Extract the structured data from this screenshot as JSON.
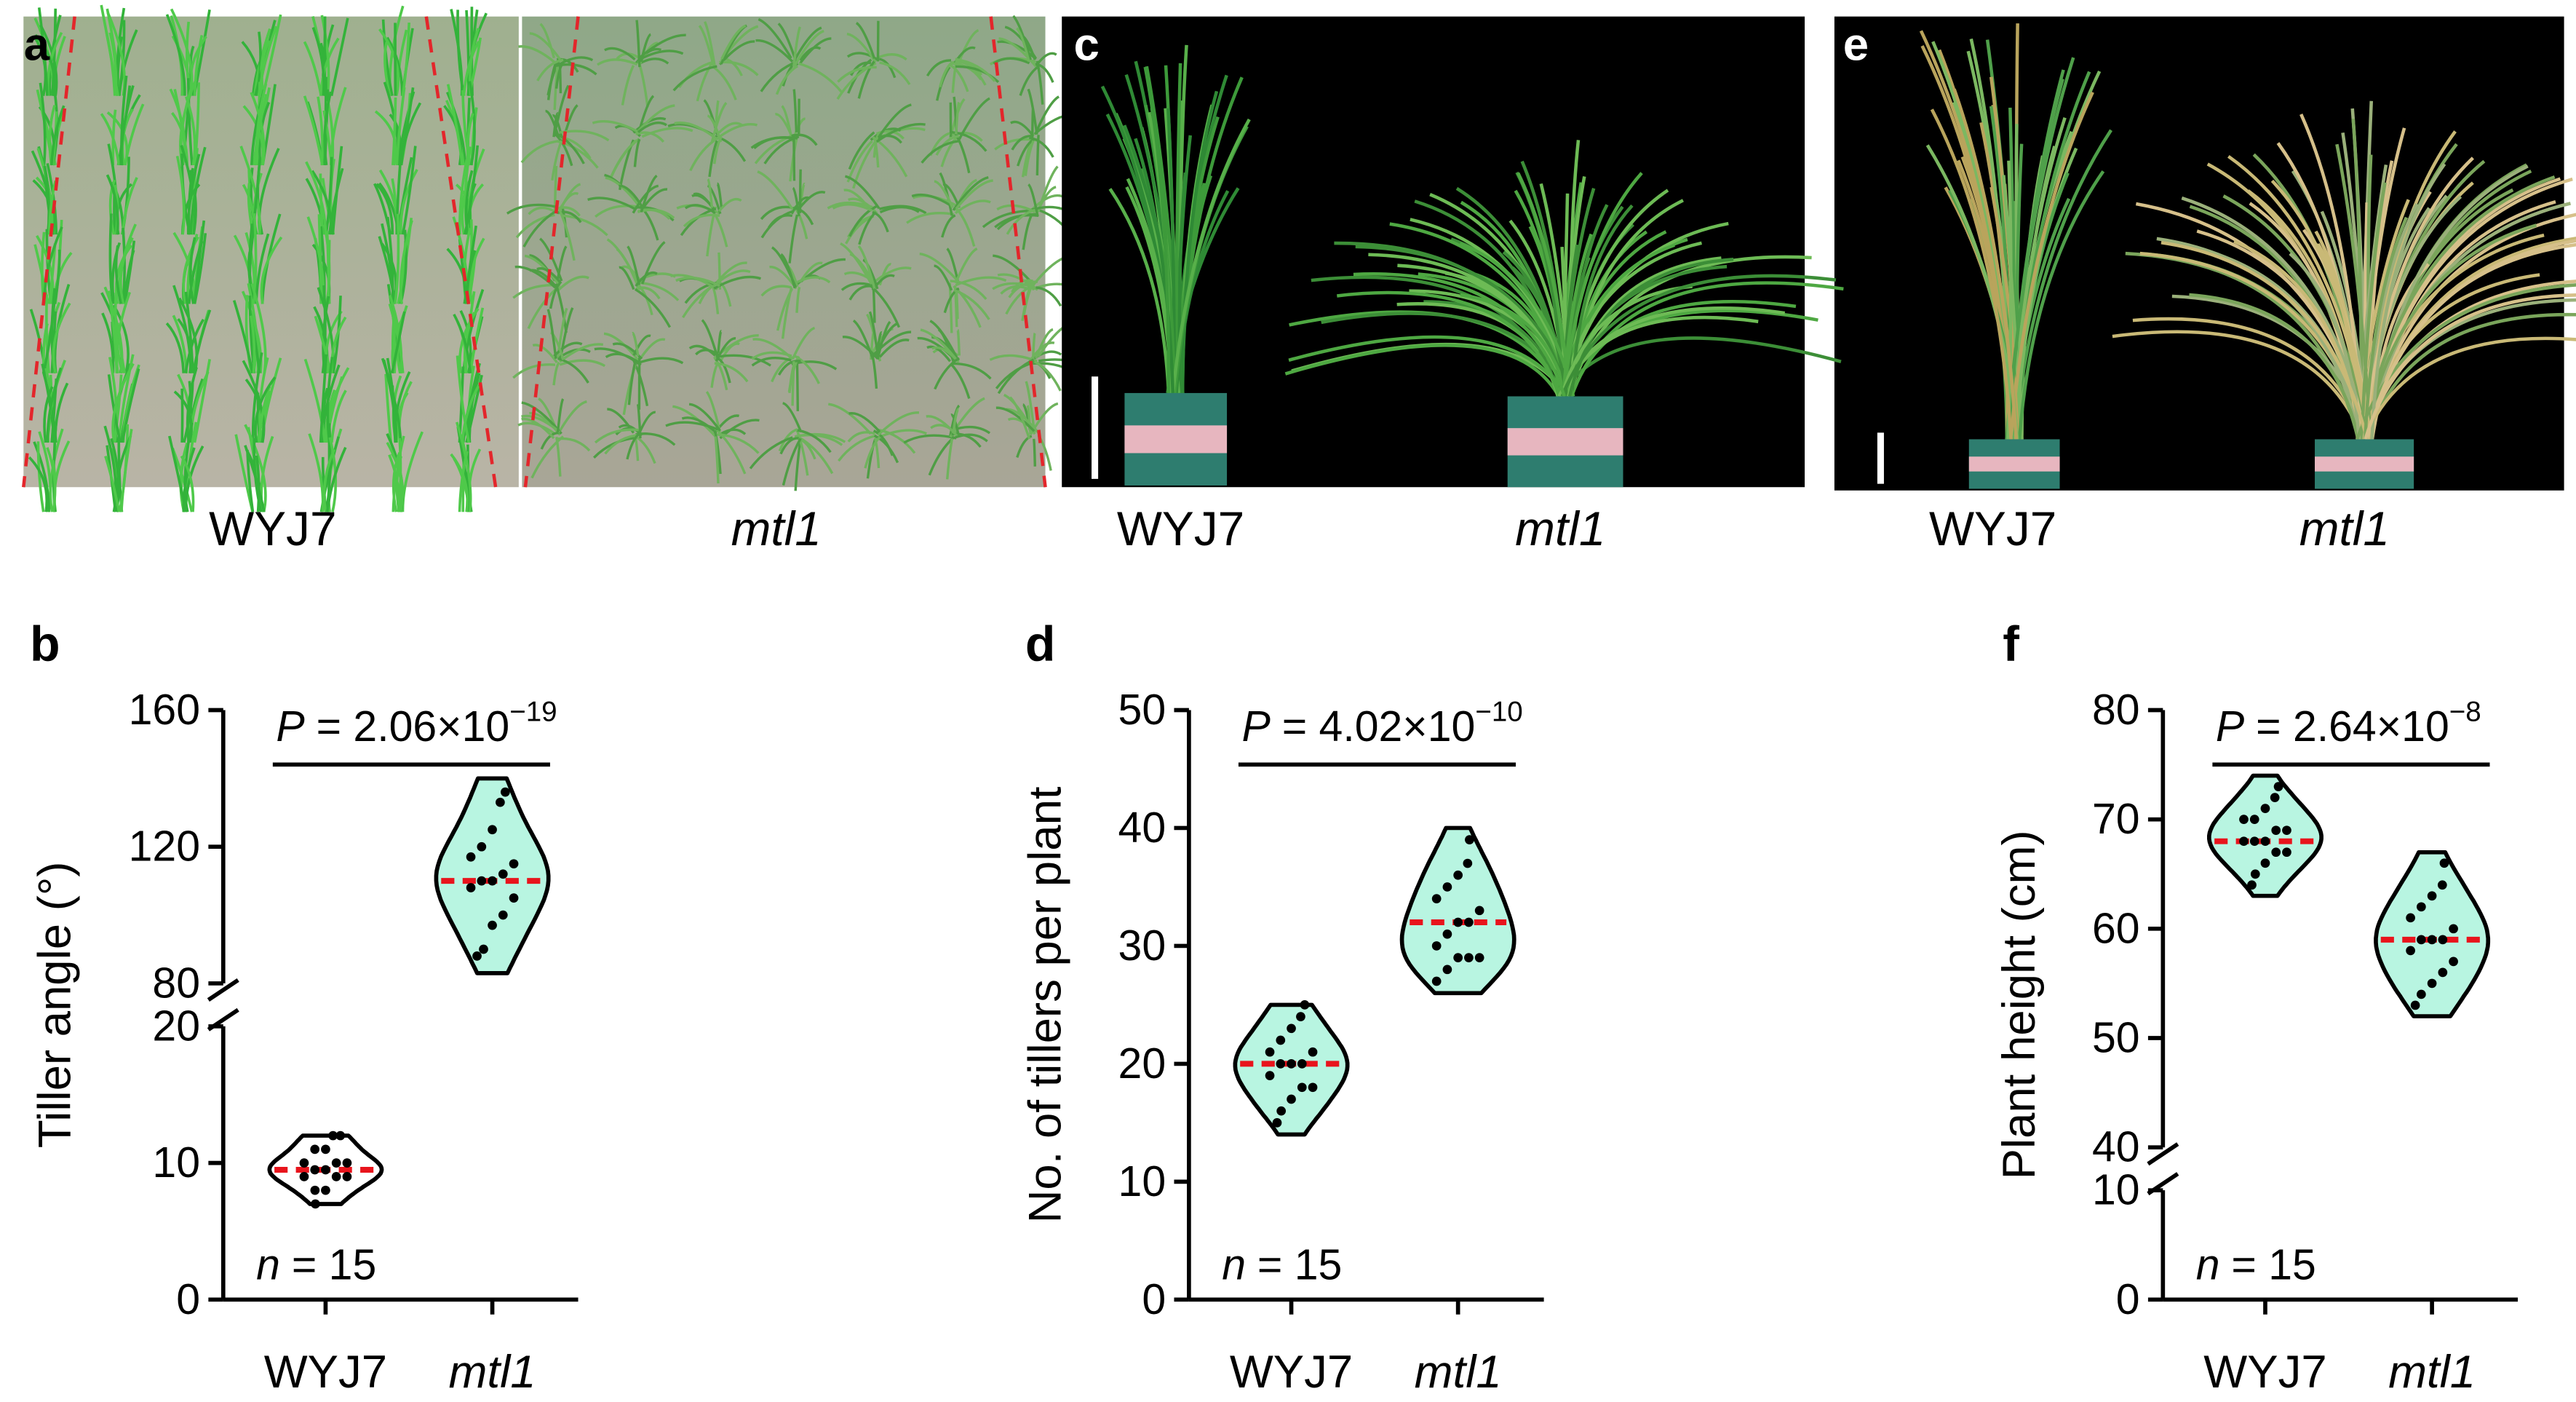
{
  "photos": [
    {
      "letter": "a",
      "labels": [
        "WYJ7",
        "mtl1"
      ]
    },
    {
      "letter": "c",
      "labels": [
        "WYJ7",
        "mtl1"
      ]
    },
    {
      "letter": "e",
      "labels": [
        "WYJ7",
        "mtl1"
      ]
    }
  ],
  "chart_data": [
    {
      "type": "violin",
      "panel": "b",
      "ylabel": "Tiller angle (°)",
      "categories": [
        "WYJ7",
        "mtl1"
      ],
      "ylim": [
        0,
        160
      ],
      "ybreak": [
        20,
        80
      ],
      "yticks": [
        0,
        10,
        20,
        80,
        120,
        160
      ],
      "points": [
        [
          7,
          8,
          8,
          9,
          9,
          9,
          9.5,
          9.5,
          10,
          10,
          10,
          11,
          11,
          12,
          12
        ],
        [
          88,
          90,
          97,
          100,
          105,
          108,
          110,
          110,
          112,
          115,
          117,
          120,
          125,
          133,
          136
        ]
      ],
      "medians": [
        9.5,
        110
      ],
      "mins": [
        7,
        83
      ],
      "maxs": [
        12,
        140
      ],
      "colors": [
        "#ffffff",
        "#b8f5e1"
      ],
      "median_color": "#e8141c",
      "annotation": {
        "italic": "P",
        "text": "= 2.06×10",
        "exponent": "−19"
      },
      "n_note": {
        "italic": "n",
        "text": "= 15"
      }
    },
    {
      "type": "violin",
      "panel": "d",
      "ylabel": "No. of tillers per plant",
      "categories": [
        "WYJ7",
        "mtl1"
      ],
      "ylim": [
        0,
        50
      ],
      "yticks": [
        0,
        10,
        20,
        30,
        40,
        50
      ],
      "points": [
        [
          15,
          16,
          17,
          18,
          18,
          19,
          20,
          20,
          20,
          21,
          21,
          22,
          23,
          24,
          25
        ],
        [
          27,
          28,
          29,
          29,
          29,
          30,
          31,
          32,
          32,
          33,
          34,
          35,
          36,
          37,
          39
        ]
      ],
      "medians": [
        20,
        32
      ],
      "mins": [
        14,
        26
      ],
      "maxs": [
        25,
        40
      ],
      "colors": [
        "#b8f5e1",
        "#b8f5e1"
      ],
      "median_color": "#e8141c",
      "annotation": {
        "italic": "P",
        "text": "= 4.02×10",
        "exponent": "−10"
      },
      "n_note": {
        "italic": "n",
        "text": "= 15"
      }
    },
    {
      "type": "violin",
      "panel": "f",
      "ylabel": "Plant height (cm)",
      "categories": [
        "WYJ7",
        "mtl1"
      ],
      "ylim": [
        0,
        80
      ],
      "ybreak": [
        10,
        40
      ],
      "yticks": [
        0,
        10,
        40,
        50,
        60,
        70,
        80
      ],
      "points": [
        [
          64,
          65,
          66,
          67,
          67,
          68,
          68,
          68,
          69,
          69,
          70,
          70,
          71,
          72,
          73
        ],
        [
          53,
          54,
          55,
          56,
          57,
          58,
          59,
          59,
          59,
          60,
          61,
          62,
          63,
          64,
          66
        ]
      ],
      "medians": [
        68,
        59
      ],
      "mins": [
        63,
        52
      ],
      "maxs": [
        74,
        67
      ],
      "colors": [
        "#b8f5e1",
        "#b8f5e1"
      ],
      "median_color": "#e8141c",
      "annotation": {
        "italic": "P",
        "text": "= 2.64×10",
        "exponent": "−8"
      },
      "n_note": {
        "italic": "n",
        "text": "= 15"
      }
    }
  ]
}
